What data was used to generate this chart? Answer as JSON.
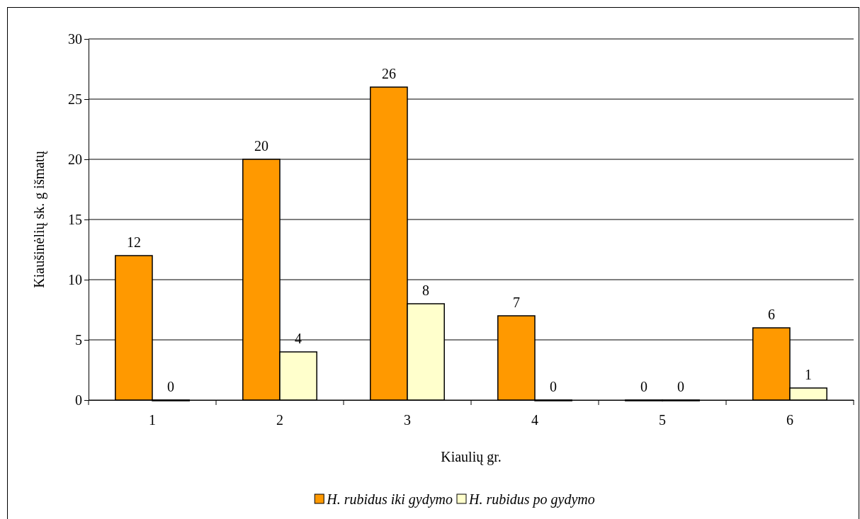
{
  "chart_data": {
    "type": "bar",
    "xlabel": "Kiaulių gr.",
    "ylabel": "Kiaušinėlių sk. g išmatų",
    "categories": [
      "1",
      "2",
      "3",
      "4",
      "5",
      "6"
    ],
    "series": [
      {
        "name": "H. rubidus iki gydymo",
        "color": "#ff9900",
        "values": [
          12,
          20,
          26,
          7,
          0,
          6
        ]
      },
      {
        "name": "H. rubidus po gydymo",
        "color": "#ffffcc",
        "values": [
          0,
          4,
          8,
          0,
          0,
          1
        ]
      }
    ],
    "ylim": [
      0,
      30
    ],
    "yticks": [
      0,
      5,
      10,
      15,
      20,
      25,
      30
    ],
    "grid": "y",
    "data_labels": true,
    "legend": "bottom"
  }
}
